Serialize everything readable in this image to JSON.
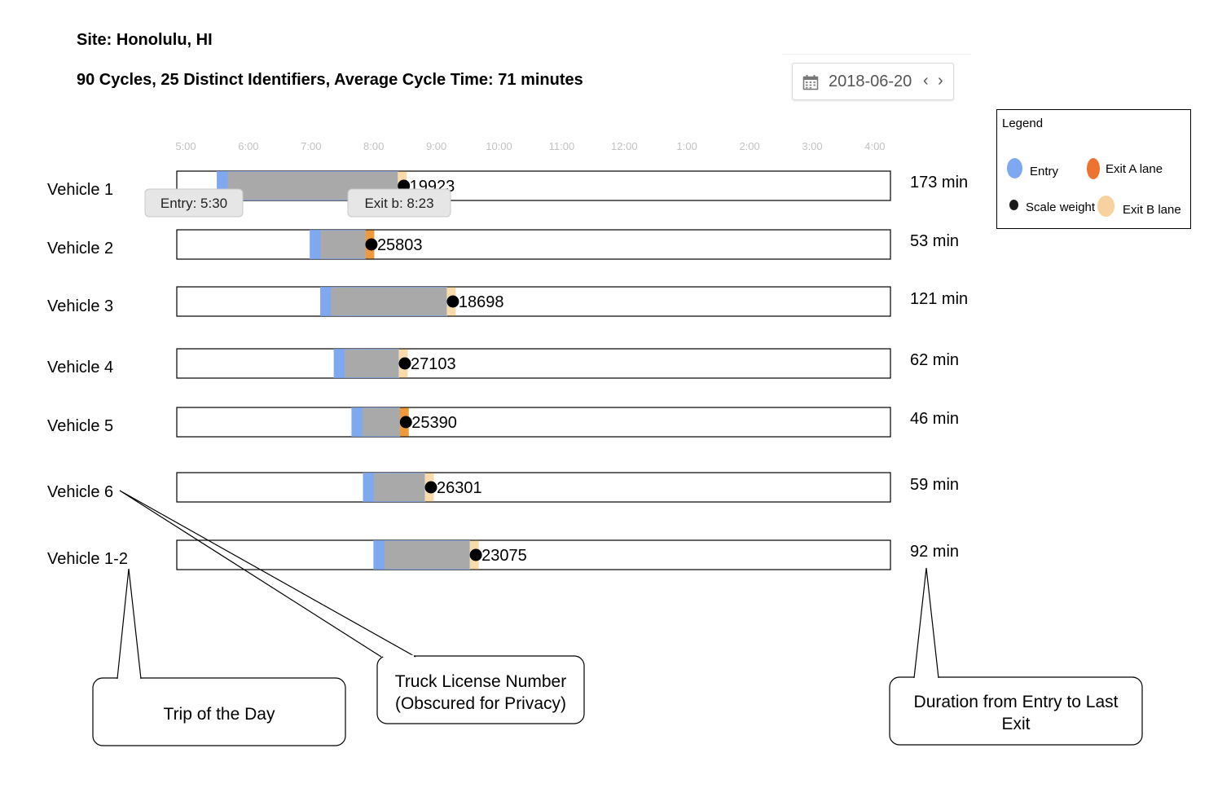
{
  "header": {
    "site": "Site: Honolulu, HI",
    "summary": "90 Cycles, 25 Distinct Identifiers, Average Cycle Time: 71 minutes"
  },
  "date_picker": {
    "date": "2018-06-20",
    "prev_label": "‹",
    "next_label": "›",
    "icon": "calendar-icon"
  },
  "legend": {
    "title": "Legend",
    "items": [
      {
        "label": "Entry",
        "color": "#7ea8ef"
      },
      {
        "label": "Exit A lane",
        "color": "#ee7330"
      },
      {
        "label": "Scale weight",
        "color": "#000000"
      },
      {
        "label": "Exit B lane",
        "color": "#f7d19e"
      }
    ]
  },
  "chart_data": {
    "type": "timeline",
    "axis": {
      "ticks": [
        "5:00",
        "6:00",
        "7:00",
        "8:00",
        "9:00",
        "10:00",
        "11:00",
        "12:00",
        "1:00",
        "2:00",
        "3:00",
        "4:00"
      ],
      "start_hour": 5,
      "end_hour": 16
    },
    "colors": {
      "entry": "#7ea8ef",
      "exit_a": "#ee9a3c",
      "exit_b": "#f8dba8",
      "body": "#a9a9a9",
      "scale": "#000000"
    },
    "rows": [
      {
        "label": "Vehicle 1",
        "entry": "5:30",
        "exit": "8:23",
        "exit_lane": "B",
        "weight": "19923",
        "duration": "173 min"
      },
      {
        "label": "Vehicle 2",
        "entry": "6:59",
        "exit": "7:52",
        "exit_lane": "A",
        "weight": "25803",
        "duration": "53 min"
      },
      {
        "label": "Vehicle 3",
        "entry": "7:09",
        "exit": "9:10",
        "exit_lane": "B",
        "weight": "18698",
        "duration": "121 min"
      },
      {
        "label": "Vehicle 4",
        "entry": "7:22",
        "exit": "8:24",
        "exit_lane": "B",
        "weight": "27103",
        "duration": "62 min"
      },
      {
        "label": "Vehicle 5",
        "entry": "7:39",
        "exit": "8:25",
        "exit_lane": "A",
        "weight": "25390",
        "duration": "46 min"
      },
      {
        "label": "Vehicle 6",
        "entry": "7:50",
        "exit": "8:49",
        "exit_lane": "B",
        "weight": "26301",
        "duration": "59 min"
      },
      {
        "label": "Vehicle 1-2",
        "entry": "8:00",
        "exit": "9:32",
        "exit_lane": "B",
        "weight": "23075",
        "duration": "92 min"
      }
    ],
    "tooltips": {
      "entry": "Entry: 5:30",
      "exit": "Exit b: 8:23"
    }
  },
  "annotations": {
    "trip": "Trip of the Day",
    "license": [
      "Truck License Number",
      "(Obscured for Privacy)"
    ],
    "duration": [
      "Duration from Entry to Last",
      "Exit"
    ]
  }
}
